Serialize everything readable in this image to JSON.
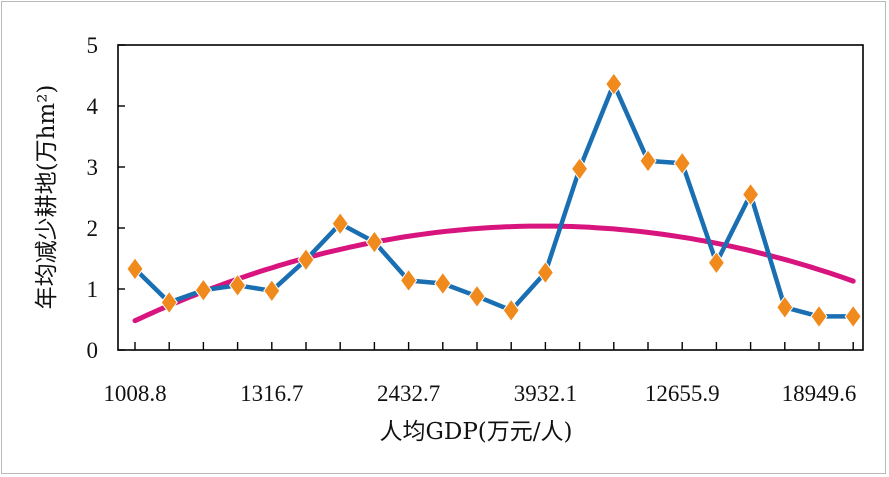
{
  "chart_data": {
    "type": "line",
    "title": "",
    "xlabel": "人均GDP(万元/人)",
    "ylabel": "年均减少耕地(万hm²)",
    "ylim": [
      0,
      5
    ],
    "yticks": [
      "0",
      "1",
      "2",
      "3",
      "4",
      "5"
    ],
    "xtick_labels": [
      "1008.8",
      "1316.7",
      "2432.7",
      "3932.1",
      "12655.9",
      "18949.6"
    ],
    "point_count": 22,
    "grid": false,
    "legend": "none",
    "colors": {
      "line": "#1a6fb3",
      "marker": "#f08a1c",
      "trend": "#d8147f"
    },
    "series": [
      {
        "values": [
          1.33,
          0.78,
          0.98,
          1.06,
          0.97,
          1.48,
          2.07,
          1.77,
          1.14,
          1.09,
          0.88,
          0.65,
          1.27,
          2.97,
          4.36,
          3.1,
          3.06,
          1.43,
          2.55,
          0.7,
          0.55,
          0.55
        ]
      }
    ],
    "trend": {
      "type": "quadratic",
      "values_at_first_mid_last": [
        0.48,
        2.01,
        1.13
      ]
    }
  }
}
